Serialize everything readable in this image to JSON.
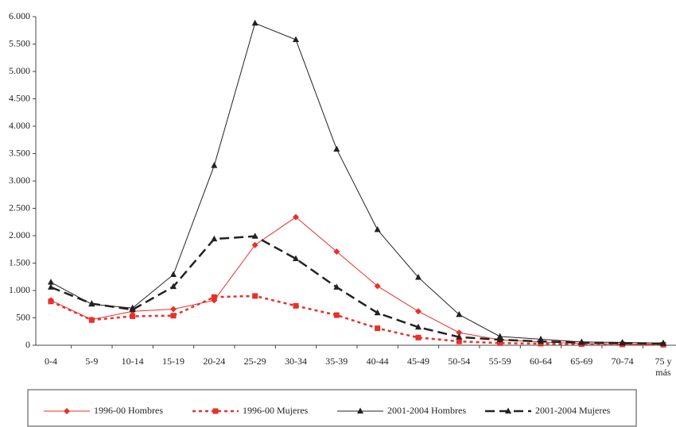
{
  "chart_data": {
    "type": "line",
    "categories": [
      "0-4",
      "5-9",
      "10-14",
      "15-19",
      "20-24",
      "25-29",
      "30-34",
      "35-39",
      "40-44",
      "45-49",
      "50-54",
      "55-59",
      "60-64",
      "65-69",
      "70-74",
      "75 y más"
    ],
    "series": [
      {
        "name": "1996-00 Hombres",
        "color": "#e8302a",
        "marker": "diamond",
        "dash": false,
        "values": [
          820,
          470,
          620,
          660,
          820,
          1830,
          2340,
          1710,
          1080,
          620,
          230,
          100,
          60,
          30,
          20,
          10
        ]
      },
      {
        "name": "1996-00 Mujeres",
        "color": "#e8302a",
        "marker": "square",
        "dash": true,
        "values": [
          800,
          460,
          530,
          540,
          880,
          900,
          720,
          550,
          310,
          140,
          70,
          40,
          30,
          20,
          15,
          10
        ]
      },
      {
        "name": "2001-2004 Hombres",
        "color": "#222222",
        "marker": "triangle",
        "dash": false,
        "values": [
          1150,
          750,
          680,
          1290,
          3280,
          5880,
          5580,
          3580,
          2110,
          1240,
          560,
          160,
          110,
          60,
          50,
          40
        ]
      },
      {
        "name": "2001-2004 Mujeres",
        "color": "#222222",
        "marker": "triangle",
        "dash": true,
        "values": [
          1060,
          760,
          650,
          1070,
          1940,
          1990,
          1580,
          1060,
          590,
          330,
          150,
          100,
          70,
          50,
          40,
          30
        ]
      }
    ],
    "ylim": [
      0,
      6000
    ],
    "yticks": [
      0,
      500,
      {
        "value": 1000,
        "label": "1.000"
      },
      {
        "value": 1500,
        "label": "1.500"
      },
      {
        "value": 2000,
        "label": "2.000"
      },
      {
        "value": 2500,
        "label": "2.500"
      },
      {
        "value": 3000,
        "label": "3.000"
      },
      {
        "value": 3500,
        "label": "3.500"
      },
      {
        "value": 4000,
        "label": "4.000"
      },
      {
        "value": 4500,
        "label": "4.500"
      },
      {
        "value": 5000,
        "label": "5.000"
      },
      {
        "value": 5500,
        "label": "5.500"
      },
      {
        "value": 6000,
        "label": "6.000"
      }
    ],
    "grid": false,
    "legend": "bottom"
  }
}
